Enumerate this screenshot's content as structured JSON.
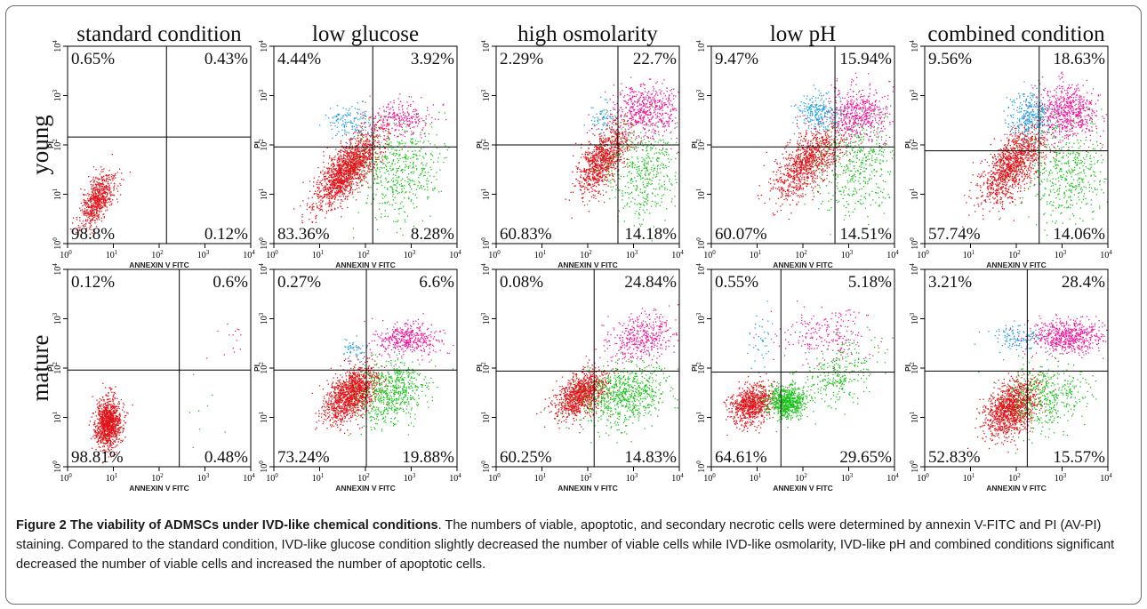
{
  "figure": {
    "column_titles": [
      "standard condition",
      "low glucose",
      "high osmolarity",
      "low pH",
      "combined condition"
    ],
    "row_labels": [
      "young",
      "mature"
    ],
    "x_axis_label": "ANNEXIN V FITC",
    "x_axis_label_variant": "ANNEXIN V FITC",
    "y_axis_label": "PI",
    "tick_labels": [
      "10^0",
      "10^1",
      "10^2",
      "10^3",
      "10^4"
    ],
    "panels": [
      {
        "row": "young",
        "condition": "standard condition",
        "upper_left": "0.65%",
        "upper_right": "0.43%",
        "lower_left": "98.8%",
        "lower_right": "0.12%"
      },
      {
        "row": "young",
        "condition": "low glucose",
        "upper_left": "4.44%",
        "upper_right": "3.92%",
        "lower_left": "83.36%",
        "lower_right": "8.28%"
      },
      {
        "row": "young",
        "condition": "high osmolarity",
        "upper_left": "2.29%",
        "upper_right": "22.7%",
        "lower_left": "60.83%",
        "lower_right": "14.18%"
      },
      {
        "row": "young",
        "condition": "low pH",
        "upper_left": "9.47%",
        "upper_right": "15.94%",
        "lower_left": "60.07%",
        "lower_right": "14.51%"
      },
      {
        "row": "young",
        "condition": "combined condition",
        "upper_left": "9.56%",
        "upper_right": "18.63%",
        "lower_left": "57.74%",
        "lower_right": "14.06%"
      },
      {
        "row": "mature",
        "condition": "standard condition",
        "upper_left": "0.12%",
        "upper_right": "0.6%",
        "lower_left": "98.81%",
        "lower_right": "0.48%"
      },
      {
        "row": "mature",
        "condition": "low glucose",
        "upper_left": "0.27%",
        "upper_right": "6.6%",
        "lower_left": "73.24%",
        "lower_right": "19.88%"
      },
      {
        "row": "mature",
        "condition": "high osmolarity",
        "upper_left": "0.08%",
        "upper_right": "24.84%",
        "lower_left": "60.25%",
        "lower_right": "14.83%"
      },
      {
        "row": "mature",
        "condition": "low pH",
        "upper_left": "0.55%",
        "upper_right": "5.18%",
        "lower_left": "64.61%",
        "lower_right": "29.65%"
      },
      {
        "row": "mature",
        "condition": "combined condition",
        "upper_left": "3.21%",
        "upper_right": "28.4%",
        "lower_left": "52.83%",
        "lower_right": "15.57%"
      }
    ],
    "colors": {
      "viable": "#e0141a",
      "early_apoptotic": "#19c419",
      "late_apoptotic": "#f0179a",
      "necrotic": "#1e9ee6"
    }
  },
  "caption": {
    "title": "Figure 2 The viability of ADMSCs under IVD-like chemical conditions",
    "body": ". The numbers of viable, apoptotic, and secondary necrotic cells were determined by annexin V-FITC and PI (AV-PI) staining. Compared to the standard condition, IVD-like glucose condition slightly decreased the number of viable cells while IVD-like osmolarity, IVD-like pH and combined conditions significant decreased the number of viable cells and increased the number of apoptotic cells."
  }
}
